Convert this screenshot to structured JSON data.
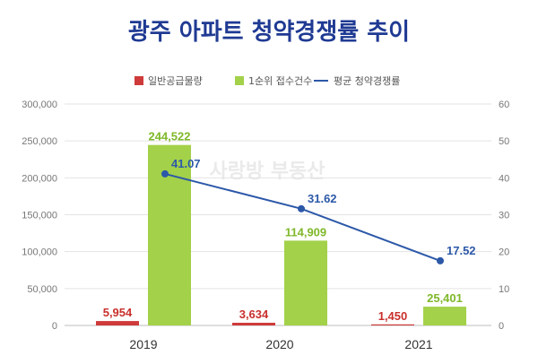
{
  "chart_data": {
    "type": "bar",
    "title": "광주 아파트 청약경쟁률 추이",
    "categories": [
      "2019",
      "2020",
      "2021"
    ],
    "series": [
      {
        "name": "일반공급물량",
        "kind": "bar",
        "axis": "left",
        "color": "#cf3a3a",
        "values": [
          5954,
          3634,
          1450
        ],
        "labels": [
          "5,954",
          "3,634",
          "1,450"
        ]
      },
      {
        "name": "1순위 접수건수",
        "kind": "bar",
        "axis": "left",
        "color": "#a3d14a",
        "values": [
          244522,
          114909,
          25401
        ],
        "labels": [
          "244,522",
          "114,909",
          "25,401"
        ]
      },
      {
        "name": "평균 청약경쟁률",
        "kind": "line",
        "axis": "right",
        "color": "#2c58a8",
        "values": [
          41.07,
          31.62,
          17.52
        ],
        "labels": [
          "41.07",
          "31.62",
          "17.52"
        ]
      }
    ],
    "y_left": {
      "ylim": [
        0,
        300000
      ],
      "ticks": [
        "0",
        "50,000",
        "100,000",
        "150,000",
        "200,000",
        "250,000",
        "300,000"
      ]
    },
    "y_right": {
      "ylim": [
        0,
        60
      ],
      "ticks": [
        "0",
        "10",
        "20",
        "30",
        "40",
        "50",
        "60"
      ]
    },
    "grid": true,
    "legend_position": "top"
  },
  "watermark": "사랑방 부동산"
}
